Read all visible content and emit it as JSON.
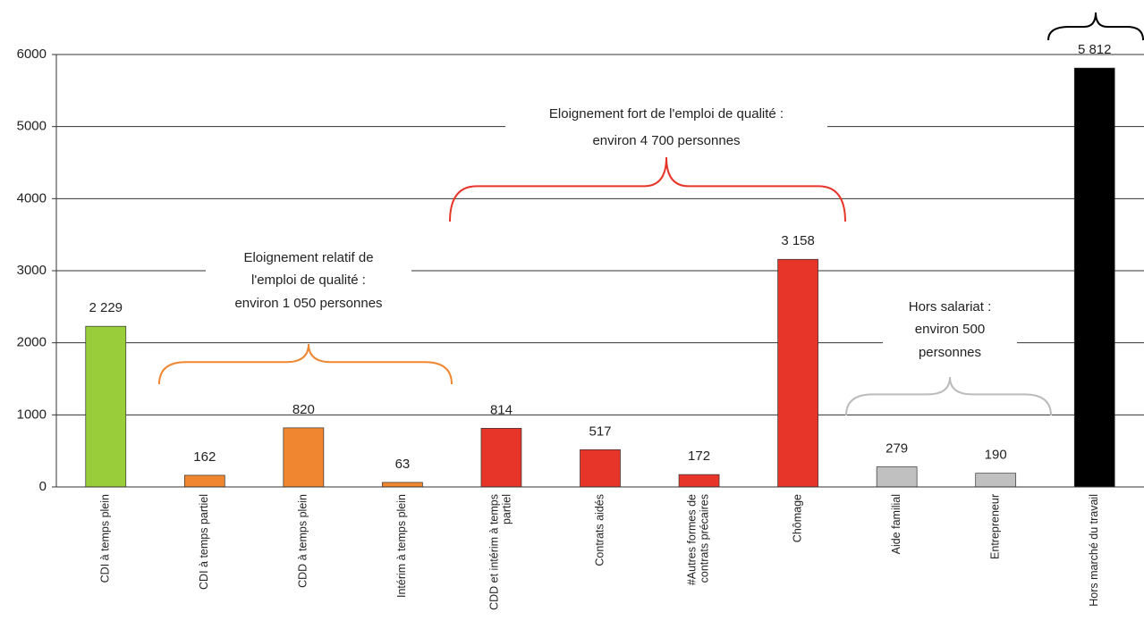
{
  "chart_data": {
    "type": "bar",
    "categories": [
      "CDI à temps plein",
      "CDI à temps partiel",
      "CDD à temps plein",
      "Intérim à temps plein",
      "CDD et intérim à temps partiel",
      "Contrats aidés",
      "#Autres formes de contrats précaires",
      "Chômage",
      "Aide familial",
      "Entrepreneur",
      "Hors marché du travail"
    ],
    "values": [
      2229,
      162,
      820,
      63,
      814,
      517,
      172,
      3158,
      279,
      190,
      5812
    ],
    "value_labels": [
      "2 229",
      "162",
      "820",
      "63",
      "814",
      "517",
      "172",
      "3 158",
      "279",
      "190",
      "5 812"
    ],
    "colors": [
      "#9acd3a",
      "#f0862f",
      "#f0862f",
      "#f0862f",
      "#e8352a",
      "#e8352a",
      "#e8352a",
      "#e8352a",
      "#c0c0c0",
      "#c0c0c0",
      "#000000"
    ],
    "ylim": [
      0,
      6000
    ],
    "yticks": [
      0,
      1000,
      2000,
      3000,
      4000,
      5000,
      6000
    ],
    "grid": true,
    "annotations": [
      {
        "lines": [
          "Eloignement relatif de",
          "l'emploi de qualité :",
          "environ 1 050 personnes"
        ],
        "color": "#f0862f"
      },
      {
        "lines": [
          "Eloignement fort de l'emploi de qualité :",
          "environ 4 700 personnes"
        ],
        "color": "#e8352a"
      },
      {
        "lines": [
          "Hors salariat :",
          "environ  500",
          "personnes"
        ],
        "color": "#bbbbbb"
      }
    ]
  }
}
